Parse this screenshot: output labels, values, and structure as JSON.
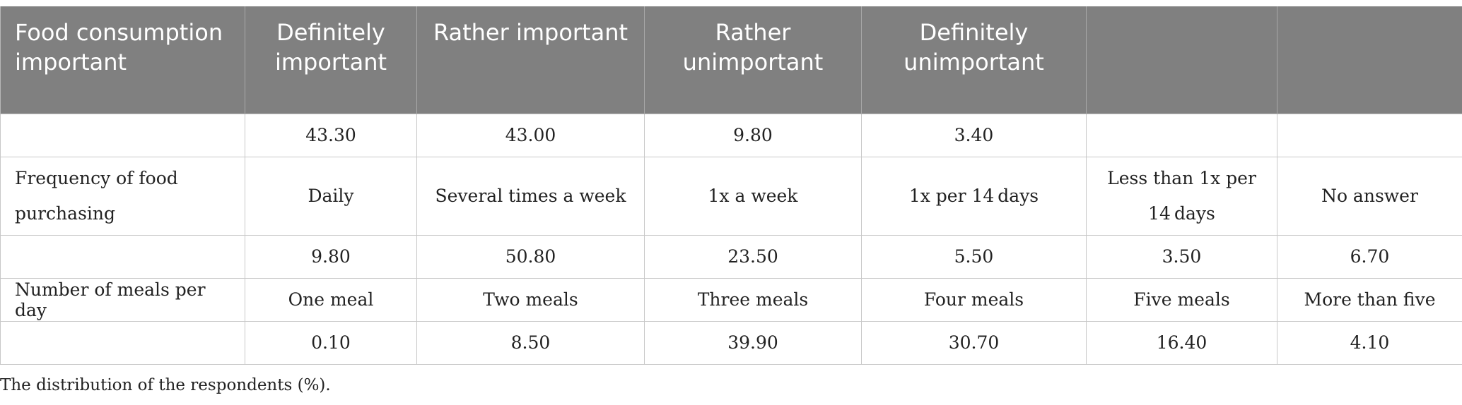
{
  "table": {
    "header": [
      "Food consumption important",
      "Definitely important",
      "Rather important",
      "Rather unimportant",
      "Definitely unimportant",
      "",
      ""
    ],
    "rows": [
      {
        "kind": "value",
        "cells": [
          "",
          "43.30",
          "43.00",
          "9.80",
          "3.40",
          "",
          ""
        ]
      },
      {
        "kind": "label",
        "cells": [
          "Frequency of food purchasing",
          "Daily",
          "Several times a week",
          "1x a week",
          "1x per 14 days",
          "Less than 1x per 14 days",
          "No answer"
        ]
      },
      {
        "kind": "value",
        "cells": [
          "",
          "9.80",
          "50.80",
          "23.50",
          "5.50",
          "3.50",
          "6.70"
        ]
      },
      {
        "kind": "label",
        "cells": [
          "Number of meals per day",
          "One meal",
          "Two meals",
          "Three meals",
          "Four meals",
          "Five meals",
          "More than five"
        ]
      },
      {
        "kind": "value",
        "cells": [
          "",
          "0.10",
          "8.50",
          "39.90",
          "30.70",
          "16.40",
          "4.10"
        ]
      }
    ]
  },
  "footnote": "The distribution of the respondents (%)."
}
